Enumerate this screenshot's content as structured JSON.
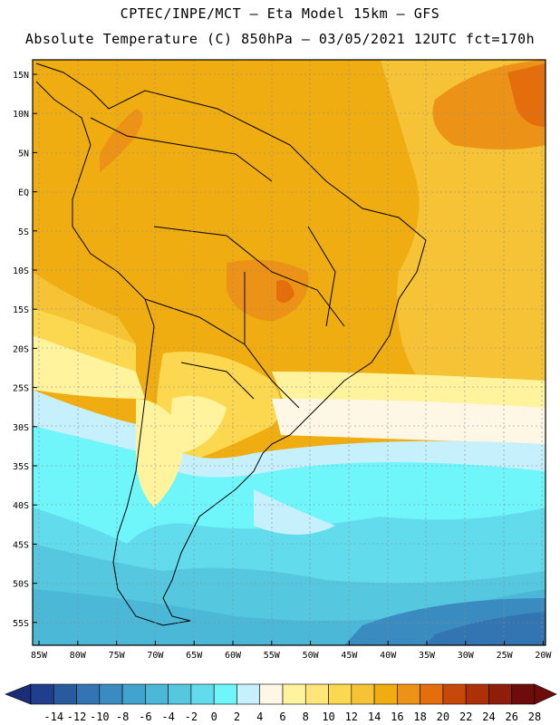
{
  "header": {
    "line1": "CPTEC/INPE/MCT –  Eta Model 15km – GFS",
    "line2": "Absolute Temperature (C) 850hPa – 03/05/2021 12UTC fct=170h"
  },
  "map": {
    "lat_labels": [
      "15N",
      "10N",
      "5N",
      "EQ",
      "5S",
      "10S",
      "15S",
      "20S",
      "25S",
      "30S",
      "35S",
      "40S",
      "45S",
      "50S",
      "55S"
    ],
    "lon_labels": [
      "85W",
      "80W",
      "75W",
      "70W",
      "65W",
      "60W",
      "55W",
      "50W",
      "45W",
      "40W",
      "35W",
      "30W",
      "25W",
      "20W"
    ]
  },
  "colorbar": {
    "labels": [
      "-14",
      "-12",
      "-10",
      "-8",
      "-6",
      "-4",
      "-2",
      "0",
      "2",
      "4",
      "6",
      "8",
      "10",
      "12",
      "14",
      "16",
      "18",
      "20",
      "22",
      "24",
      "26",
      "28"
    ],
    "colors": [
      "#1f3f8c",
      "#2a5a9e",
      "#3275b2",
      "#3a8cc0",
      "#42a3cc",
      "#4bb8d8",
      "#55c8e0",
      "#62dcec",
      "#6ef6fb",
      "#c6f0fb",
      "#fff7e6",
      "#fff39e",
      "#ffe57a",
      "#fbd84f",
      "#f6c336",
      "#f0ad12",
      "#ec9317",
      "#e46d0c",
      "#c8480a",
      "#ad3008",
      "#8e1d0a",
      "#6e0b0b"
    ],
    "under_color": "#1c2d78",
    "over_color": "#6e0b0b"
  }
}
